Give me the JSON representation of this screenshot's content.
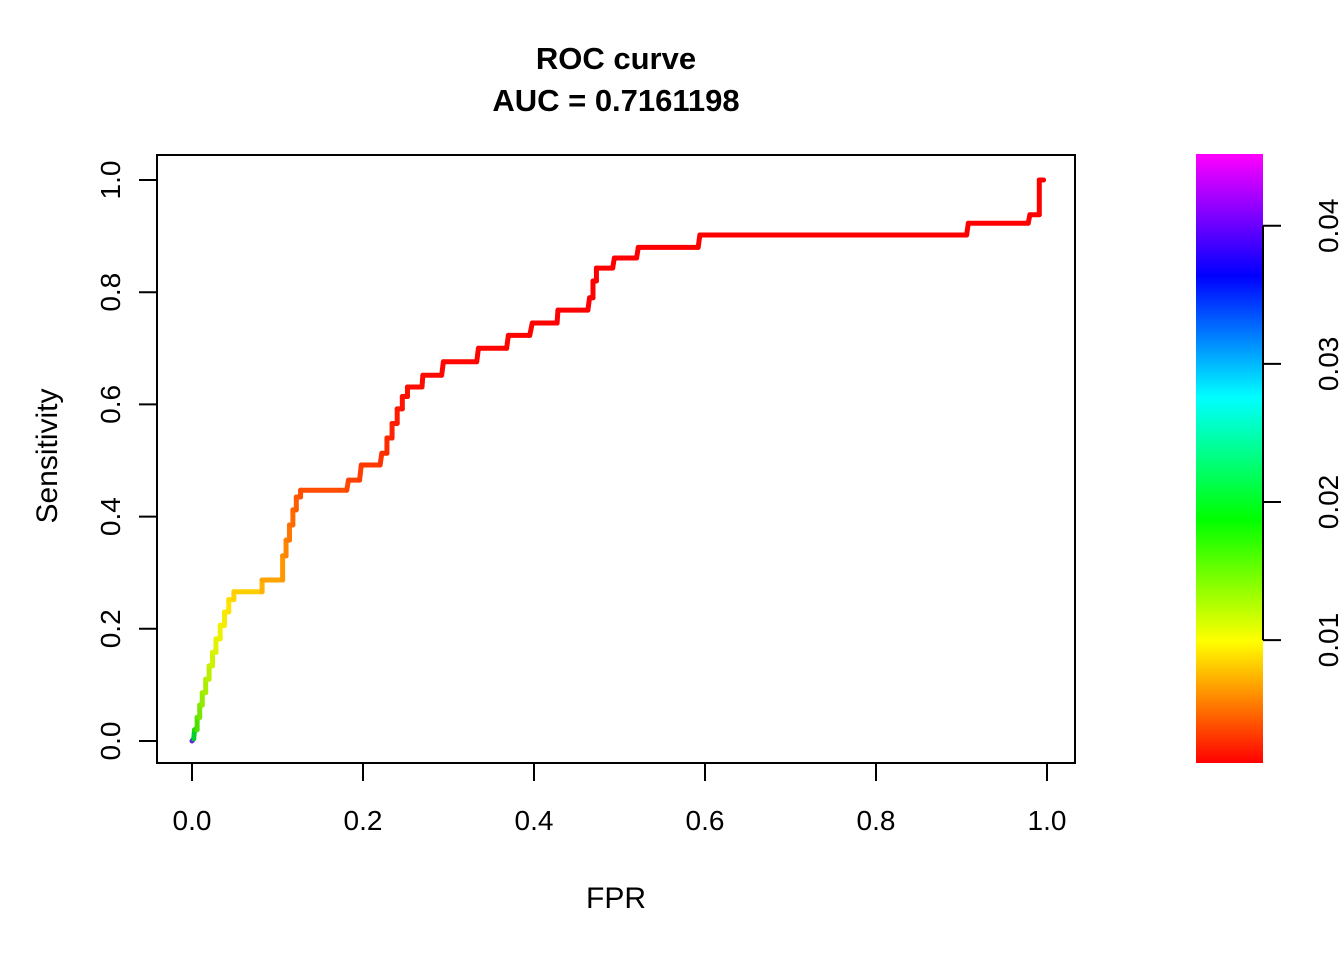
{
  "title": {
    "line1": "ROC curve",
    "line2": "AUC = 0.7161198"
  },
  "axes": {
    "x": {
      "label": "FPR",
      "tick_labels": [
        "0.0",
        "0.2",
        "0.4",
        "0.6",
        "0.8",
        "1.0"
      ],
      "tick_values": [
        0,
        0.2,
        0.4,
        0.6,
        0.8,
        1.0
      ],
      "range": [
        0,
        1
      ]
    },
    "y": {
      "label": "Sensitivity",
      "tick_labels": [
        "0.0",
        "0.2",
        "0.4",
        "0.6",
        "0.8",
        "1.0"
      ],
      "tick_values": [
        0,
        0.2,
        0.4,
        0.6,
        0.8,
        1.0
      ],
      "range": [
        0,
        1
      ]
    }
  },
  "colorbar": {
    "tick_labels": [
      "0.01",
      "0.02",
      "0.03",
      "0.04"
    ],
    "tick_values": [
      0.01,
      0.02,
      0.03,
      0.04
    ],
    "value_range": [
      0.0011,
      0.0452
    ],
    "colors_bottom_to_top": [
      "#FF0000",
      "#FFFF00",
      "#00FF00",
      "#00FFFF",
      "#0000FF",
      "#FF00FF"
    ]
  },
  "chart_data": {
    "type": "line",
    "subtype": "roc-step-curve-colorized-by-cutoff",
    "title": "ROC curve",
    "subtitle": "AUC = 0.7161198",
    "auc": 0.7161198,
    "xlabel": "FPR",
    "ylabel": "Sensitivity",
    "xlim": [
      0,
      1
    ],
    "ylim": [
      0,
      1
    ],
    "grid": false,
    "legend_position": "right-colorbar",
    "cutoff_range": [
      0.0011,
      0.0452
    ],
    "points": [
      [
        0.0,
        0.0,
        "#5A2BE0"
      ],
      [
        0.002,
        0.004,
        "#00D22B"
      ],
      [
        0.003,
        0.02,
        "#21DC00"
      ],
      [
        0.006,
        0.02,
        "#4FE000"
      ],
      [
        0.006,
        0.042,
        "#63E400"
      ],
      [
        0.009,
        0.042,
        "#77E700"
      ],
      [
        0.009,
        0.064,
        "#85E900"
      ],
      [
        0.012,
        0.064,
        "#92EB00"
      ],
      [
        0.012,
        0.086,
        "#9EED00"
      ],
      [
        0.016,
        0.086,
        "#A9EE00"
      ],
      [
        0.016,
        0.11,
        "#B3EF00"
      ],
      [
        0.02,
        0.11,
        "#BDF000"
      ],
      [
        0.02,
        0.134,
        "#C6F100"
      ],
      [
        0.024,
        0.134,
        "#CFF200"
      ],
      [
        0.024,
        0.158,
        "#D7F300"
      ],
      [
        0.028,
        0.158,
        "#DFF300"
      ],
      [
        0.028,
        0.182,
        "#E6F300"
      ],
      [
        0.033,
        0.182,
        "#ECF200"
      ],
      [
        0.033,
        0.206,
        "#F1F000"
      ],
      [
        0.038,
        0.206,
        "#F6EC00"
      ],
      [
        0.038,
        0.23,
        "#FAE800"
      ],
      [
        0.043,
        0.23,
        "#FDE300"
      ],
      [
        0.043,
        0.252,
        "#FFDD00"
      ],
      [
        0.049,
        0.252,
        "#FFD600"
      ],
      [
        0.049,
        0.266,
        "#FFCE00"
      ],
      [
        0.082,
        0.266,
        "#FFB000"
      ],
      [
        0.082,
        0.287,
        "#FFA300"
      ],
      [
        0.106,
        0.287,
        "#FF9700"
      ],
      [
        0.106,
        0.33,
        "#FF8C00"
      ],
      [
        0.11,
        0.33,
        "#FF8400"
      ],
      [
        0.11,
        0.358,
        "#FF7D00"
      ],
      [
        0.114,
        0.358,
        "#FF7600"
      ],
      [
        0.114,
        0.385,
        "#FF7000"
      ],
      [
        0.118,
        0.385,
        "#FF6A00"
      ],
      [
        0.118,
        0.412,
        "#FF6400"
      ],
      [
        0.122,
        0.412,
        "#FF5E00"
      ],
      [
        0.122,
        0.435,
        "#FF5800"
      ],
      [
        0.127,
        0.435,
        "#FF5200"
      ],
      [
        0.127,
        0.447,
        "#FF4D00"
      ],
      [
        0.181,
        0.447,
        "#FF4800"
      ],
      [
        0.183,
        0.465,
        "#FF4300"
      ],
      [
        0.196,
        0.465,
        "#FF3E00"
      ],
      [
        0.198,
        0.492,
        "#FF3900"
      ],
      [
        0.22,
        0.492,
        "#FF3400"
      ],
      [
        0.222,
        0.513,
        "#FF3000"
      ],
      [
        0.228,
        0.513,
        "#FF2C00"
      ],
      [
        0.228,
        0.54,
        "#FF2800"
      ],
      [
        0.234,
        0.54,
        "#FF2400"
      ],
      [
        0.234,
        0.566,
        "#FF2000"
      ],
      [
        0.24,
        0.566,
        "#FF1C00"
      ],
      [
        0.24,
        0.592,
        "#FF1800"
      ],
      [
        0.246,
        0.592,
        "#FF1500"
      ],
      [
        0.246,
        0.614,
        "#FF1200"
      ],
      [
        0.252,
        0.614,
        "#FF0F00"
      ],
      [
        0.252,
        0.631,
        "#FF0C00"
      ],
      [
        0.269,
        0.631,
        "#FF0A00"
      ],
      [
        0.27,
        0.652,
        "#FF0800"
      ],
      [
        0.292,
        0.652,
        "#FF0700"
      ],
      [
        0.294,
        0.676,
        "#FF0600"
      ],
      [
        0.333,
        0.676,
        "#FF0500"
      ],
      [
        0.335,
        0.7,
        "#FF0400"
      ],
      [
        0.368,
        0.7,
        "#FF0300"
      ],
      [
        0.37,
        0.723,
        "#FF0300"
      ],
      [
        0.395,
        0.723,
        "#FF0200"
      ],
      [
        0.398,
        0.745,
        "#FF0200"
      ],
      [
        0.427,
        0.745,
        "#FF0100"
      ],
      [
        0.428,
        0.768,
        "#FF0100"
      ],
      [
        0.463,
        0.768,
        "#FF0100"
      ],
      [
        0.465,
        0.79,
        "#FF0000"
      ],
      [
        0.469,
        0.79,
        "#FF0000"
      ],
      [
        0.469,
        0.82,
        "#FF0000"
      ],
      [
        0.473,
        0.82,
        "#FF0000"
      ],
      [
        0.473,
        0.843,
        "#FF0000"
      ],
      [
        0.492,
        0.843,
        "#FF0000"
      ],
      [
        0.494,
        0.861,
        "#FF0000"
      ],
      [
        0.52,
        0.861,
        "#FF0000"
      ],
      [
        0.522,
        0.88,
        "#FF0000"
      ],
      [
        0.592,
        0.88,
        "#FF0000"
      ],
      [
        0.594,
        0.902,
        "#FF0000"
      ],
      [
        0.906,
        0.902,
        "#FF0000"
      ],
      [
        0.908,
        0.923,
        "#FF0000"
      ],
      [
        0.978,
        0.923,
        "#FF0000"
      ],
      [
        0.98,
        0.938,
        "#FF0000"
      ],
      [
        0.991,
        0.938,
        "#FF0000"
      ],
      [
        0.991,
        1.0,
        "#FF0000"
      ],
      [
        0.996,
        1.0,
        "#FF0000"
      ]
    ]
  }
}
